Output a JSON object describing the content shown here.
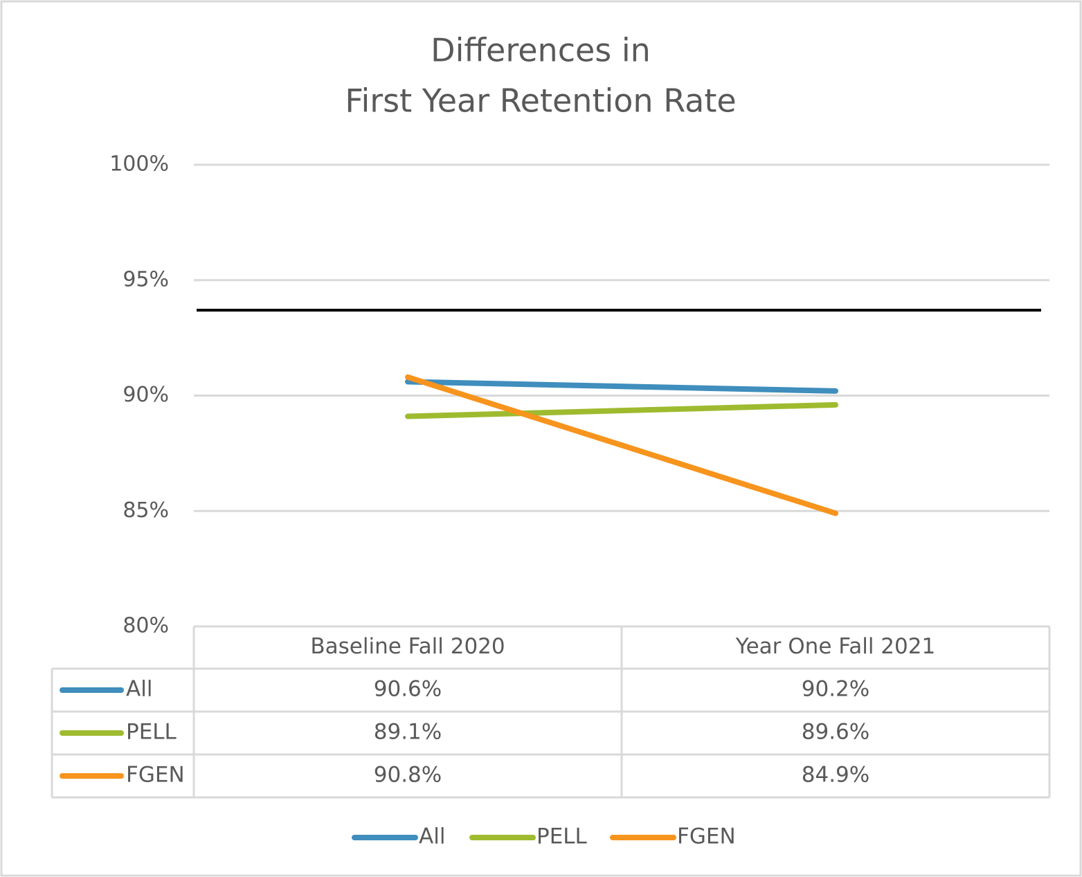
{
  "chart_data": {
    "type": "line",
    "title": [
      "Differences in",
      "First Year Retention Rate"
    ],
    "categories": [
      "Baseline Fall 2020",
      "Year One Fall 2021"
    ],
    "series": [
      {
        "name": "All",
        "color": "#3f8ebd",
        "values": [
          90.6,
          90.2
        ],
        "value_labels": [
          "90.6%",
          "90.2%"
        ]
      },
      {
        "name": "PELL",
        "color": "#9ebb2f",
        "values": [
          89.1,
          89.6
        ],
        "value_labels": [
          "89.1%",
          "89.6%"
        ]
      },
      {
        "name": "FGEN",
        "color": "#f7941d",
        "values": [
          90.8,
          84.9
        ],
        "value_labels": [
          "90.8%",
          "84.9%"
        ]
      }
    ],
    "reference_line": {
      "value": 93.7,
      "color": "#000000"
    },
    "ylim": [
      80,
      100
    ],
    "yticks": [
      {
        "value": 80,
        "label": "80%"
      },
      {
        "value": 85,
        "label": "85%"
      },
      {
        "value": 90,
        "label": "90%"
      },
      {
        "value": 95,
        "label": "95%"
      },
      {
        "value": 100,
        "label": "100%"
      }
    ],
    "grid": true,
    "legend": "bottom",
    "data_table": true
  }
}
